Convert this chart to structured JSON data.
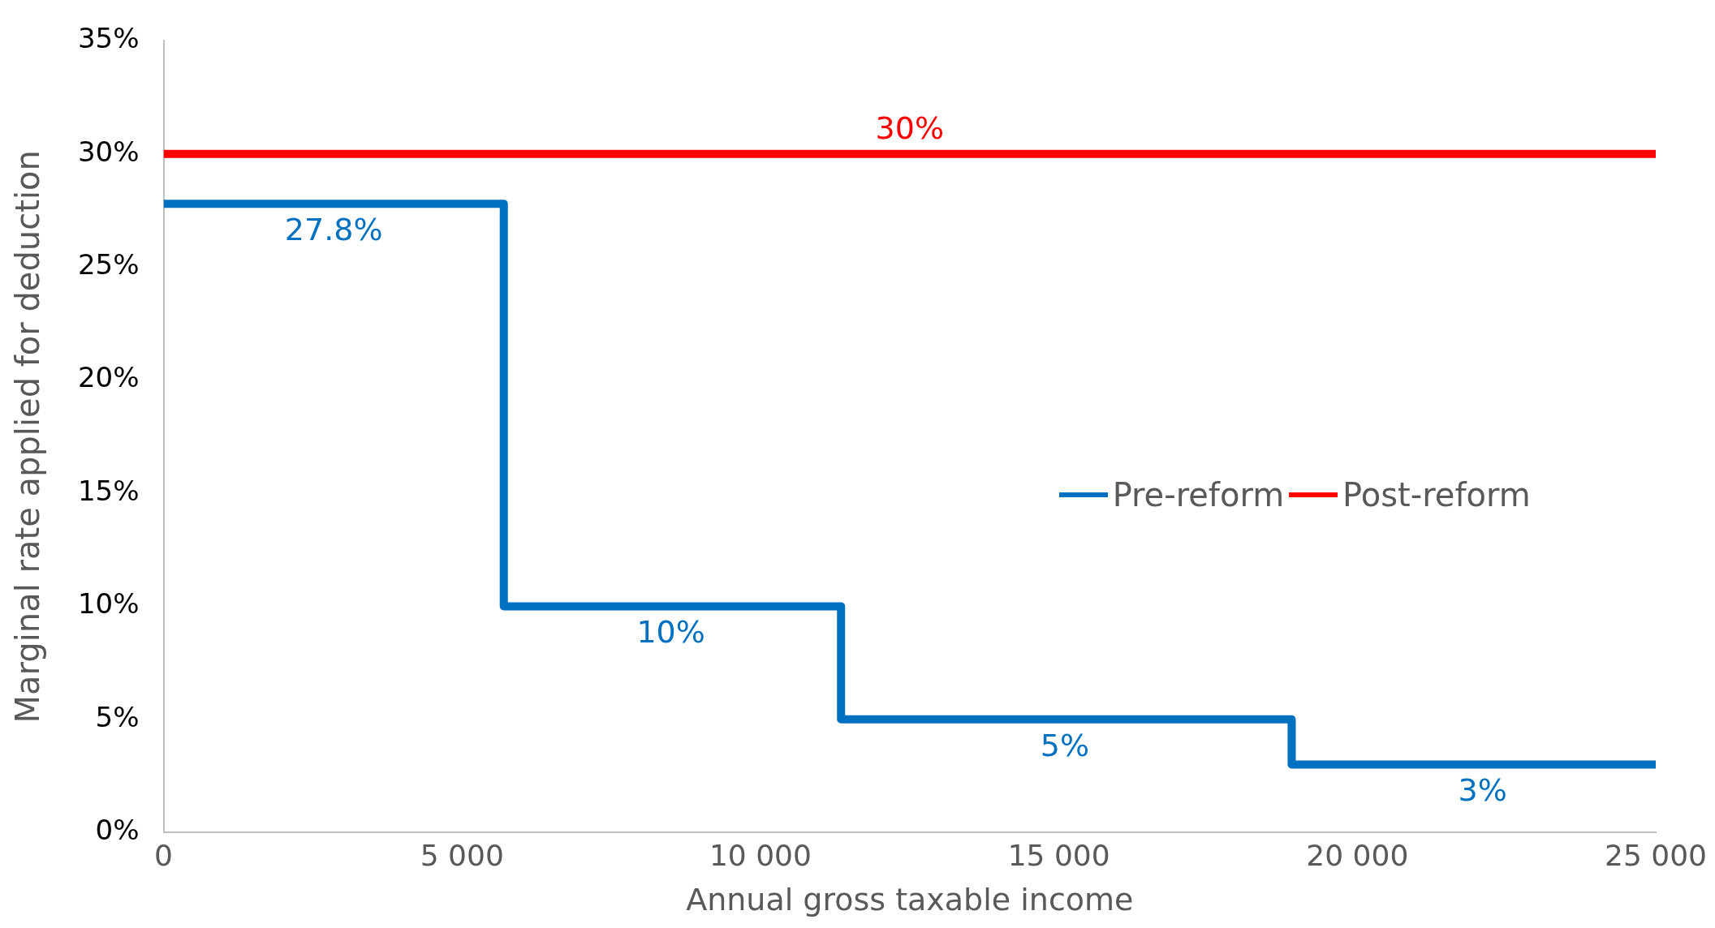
{
  "chart_data": {
    "type": "step",
    "xlabel": "Annual gross taxable income",
    "ylabel": "Marginal rate applied for deduction",
    "xlim": [
      0,
      25000
    ],
    "xticks": [
      0,
      {
        "value": 5000,
        "label": "5 000"
      },
      {
        "value": 10000,
        "label": "10 000"
      },
      {
        "value": 15000,
        "label": "15 000"
      },
      {
        "value": 20000,
        "label": "20 000"
      },
      {
        "value": 25000,
        "label": "25 000"
      }
    ],
    "ylim": [
      0,
      35
    ],
    "yticks": [
      {
        "value": 0,
        "label": "0%"
      },
      {
        "value": 5,
        "label": "5%"
      },
      {
        "value": 10,
        "label": "10%"
      },
      {
        "value": 15,
        "label": "15%"
      },
      {
        "value": 20,
        "label": "20%"
      },
      {
        "value": 25,
        "label": "25%"
      },
      {
        "value": 30,
        "label": "30%"
      },
      {
        "value": 35,
        "label": "35%"
      }
    ],
    "grid": false,
    "legend": "right",
    "marker": "none",
    "line_style": "solid",
    "series": [
      {
        "name": "Pre-reform",
        "color": "#0070c0",
        "x": [
          0,
          5700,
          11350,
          18900,
          25000
        ],
        "values": [
          27.8,
          10,
          5,
          3,
          3
        ]
      },
      {
        "name": "Post-reform",
        "color": "#ff0000",
        "x": [
          0,
          25000
        ],
        "values": [
          30,
          30
        ]
      }
    ],
    "annotations": [
      {
        "text": "30%",
        "x": 12500,
        "y": 30
      },
      {
        "text": "27.8%",
        "x": 2850,
        "y": 27.8
      },
      {
        "text": "10%",
        "x": 8500,
        "y": 10
      },
      {
        "text": "5%",
        "x": 15100,
        "y": 5
      },
      {
        "text": "3%",
        "x": 22100,
        "y": 3
      }
    ]
  }
}
